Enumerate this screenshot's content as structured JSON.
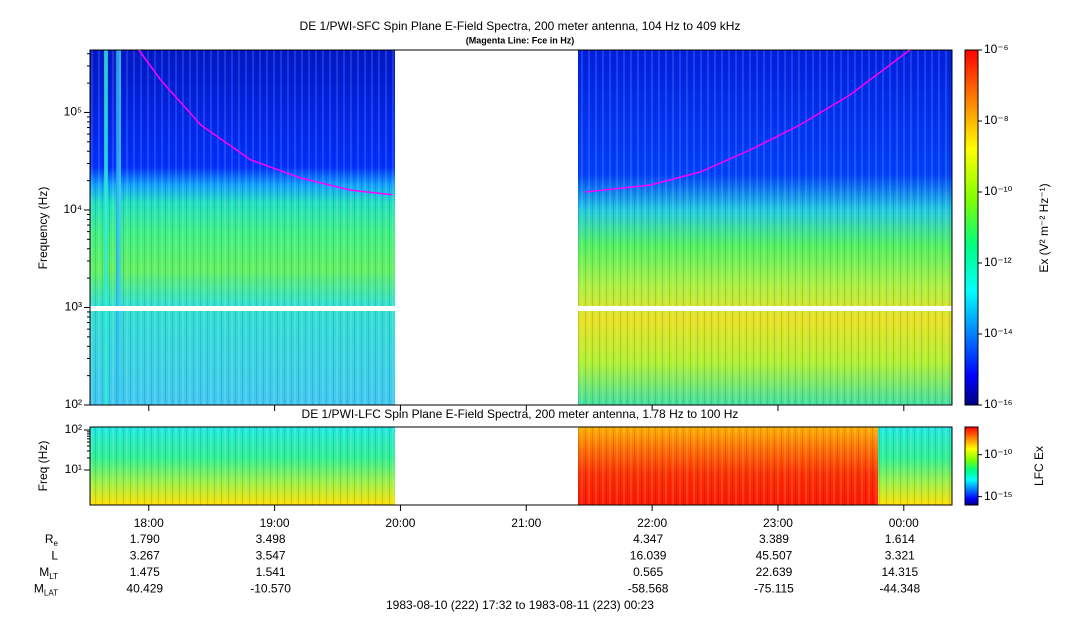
{
  "chart_data": [
    {
      "type": "spectrogram",
      "title": "DE 1/PWI-SFC  Spin Plane E-Field Spectra, 200 meter antenna, 104 Hz to 409 kHz",
      "subtitle": "(Magenta Line: Fce in Hz)",
      "y_label": "Frequency (Hz)",
      "log_y": true,
      "xlim": [
        17.533,
        24.383
      ],
      "ylim": [
        100,
        437000
      ],
      "yticks": [
        {
          "value": 100,
          "label": "10²"
        },
        {
          "value": 1000,
          "label": "10³"
        },
        {
          "value": 10000,
          "label": "10⁴"
        },
        {
          "value": 100000,
          "label": "10⁵"
        }
      ],
      "x": [
        17.921,
        18.095,
        18.413,
        18.81,
        19.206,
        19.603,
        19.937,
        null,
        21.468,
        21.984,
        22.381,
        22.778,
        23.175,
        23.571,
        24.048
      ],
      "series": [
        {
          "color": "#ff00ff",
          "values": [
            437000,
            215000,
            74500,
            32600,
            21300,
            16000,
            14300,
            null,
            15300,
            18000,
            24500,
            41200,
            74500,
            151000,
            437000
          ]
        }
      ],
      "colorbar": {
        "label": "Ex (V² m⁻² Hz⁻¹)",
        "lim": [
          1e-16,
          1e-06
        ],
        "ticks": [
          {
            "value": 1e-06,
            "label": "10⁻⁶"
          },
          {
            "value": 1e-08,
            "label": "10⁻⁸"
          },
          {
            "value": 1e-10,
            "label": "10⁻¹⁰"
          },
          {
            "value": 1e-12,
            "label": "10⁻¹²"
          },
          {
            "value": 1e-14,
            "label": "10⁻¹⁴"
          },
          {
            "value": 1e-16,
            "label": "10⁻¹⁶"
          }
        ]
      }
    },
    {
      "type": "spectrogram",
      "title": "DE 1/PWI-LFC  Spin Plane E-Field Spectra, 200 meter antenna, 1.78 Hz to 100 Hz",
      "y_label": "Freq (Hz)",
      "log_y": true,
      "xlim": [
        17.533,
        24.383
      ],
      "ylim": [
        1.33,
        119
      ],
      "yticks": [
        {
          "value": 10,
          "label": "10¹"
        },
        {
          "value": 100,
          "label": "10²"
        }
      ],
      "xticks": [
        {
          "value": 18,
          "label": "18:00"
        },
        {
          "value": 19,
          "label": "19:00"
        },
        {
          "value": 20,
          "label": "20:00"
        },
        {
          "value": 21,
          "label": "21:00"
        },
        {
          "value": 22,
          "label": "22:00"
        },
        {
          "value": 23,
          "label": "23:00"
        },
        {
          "value": 24,
          "label": "00:00"
        }
      ],
      "colorbar": {
        "label": "LFC Ex",
        "lim": [
          1e-16,
          2e-07
        ],
        "ticks": [
          {
            "value": 1e-10,
            "label": "10⁻¹⁰"
          },
          {
            "value": 1e-15,
            "label": "10⁻¹⁵"
          }
        ]
      },
      "ephemeris": [
        {
          "label": "R",
          "sub": "e",
          "values": [
            "1.790",
            "3.498",
            null,
            null,
            "4.347",
            "3.389",
            "1.614"
          ]
        },
        {
          "label": "L",
          "values": [
            "3.267",
            "3.547",
            null,
            null,
            "16.039",
            "45.507",
            "3.321"
          ]
        },
        {
          "label": "M",
          "sub": "LT",
          "values": [
            "1.475",
            "1.541",
            null,
            null,
            "0.565",
            "22.639",
            "14.315"
          ]
        },
        {
          "label": "M",
          "sub": "LAT",
          "values": [
            "40.429",
            "-10.570",
            null,
            null,
            "-58.568",
            "-75.115",
            "-44.348"
          ]
        }
      ],
      "x_label": "1983-08-10 (222) 17:32 to 1983-08-11 (223) 00:23"
    }
  ]
}
